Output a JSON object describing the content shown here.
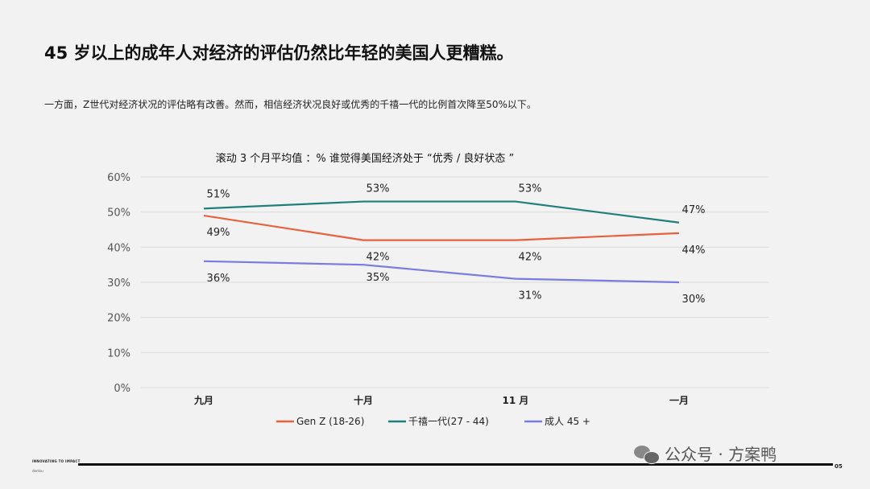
{
  "header": {
    "title": "45 岁以上的成年人对经济的评估仍然比年轻的美国人更糟糕。",
    "subtitle": "一方面，Z世代对经济状况的评估略有改善。然而，相信经济状况良好或优秀的千禧一代的比例首次降至50%以下。"
  },
  "chart_data": {
    "type": "line",
    "title": "滚动 3 个月平均值 ：% 谁觉得美国经济处于 “优秀 / 良好状态 ”",
    "categories": [
      "九月",
      "十月",
      "11 月",
      "一月"
    ],
    "ylim": [
      0,
      60
    ],
    "yticks": [
      "0%",
      "10%",
      "20%",
      "30%",
      "40%",
      "50%",
      "60%"
    ],
    "grid": true,
    "legend_position": "bottom",
    "series": [
      {
        "name": "Gen Z (18-26)",
        "color": "#e8603c",
        "values": [
          49,
          42,
          42,
          44
        ],
        "labels": [
          "49%",
          "42%",
          "42%",
          "44%"
        ]
      },
      {
        "name": "千禧一代(27 - 44)",
        "color": "#1f7f7a",
        "values": [
          51,
          53,
          53,
          47
        ],
        "labels": [
          "51%",
          "53%",
          "53%",
          "47%"
        ]
      },
      {
        "name": "成人 45 +",
        "color": "#7a7be0",
        "values": [
          36,
          35,
          31,
          30
        ],
        "labels": [
          "36%",
          "35%",
          "31%",
          "30%"
        ]
      }
    ]
  },
  "footer": {
    "tag": "INNOVATING TO IMPACT",
    "brand": "dentsu",
    "page": "05"
  },
  "watermark": {
    "text": "公众号 · 方案鸭",
    "icon": "wechat-icon"
  }
}
